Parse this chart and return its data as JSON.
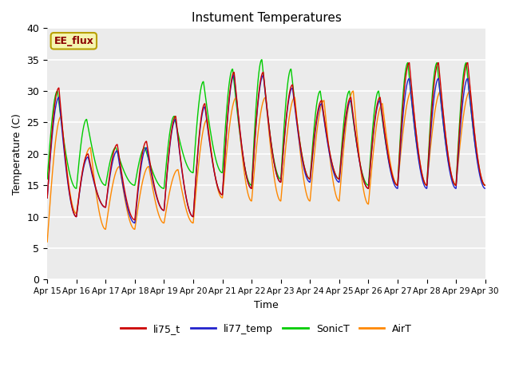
{
  "title": "Instument Temperatures",
  "xlabel": "Time",
  "ylabel": "Temperature (C)",
  "ylim": [
    0,
    40
  ],
  "xlim": [
    0,
    15
  ],
  "background_color": "#ebebeb",
  "annotation_text": "EE_flux",
  "annotation_color": "#8b0000",
  "annotation_bg": "#f5f5b0",
  "annotation_edge": "#b8a000",
  "legend_entries": [
    "li75_t",
    "li77_temp",
    "SonicT",
    "AirT"
  ],
  "legend_colors": [
    "#cc0000",
    "#2222cc",
    "#00cc00",
    "#ff8800"
  ],
  "xtick_labels": [
    "Apr 15",
    "Apr 16",
    "Apr 17",
    "Apr 18",
    "Apr 19",
    "Apr 20",
    "Apr 21",
    "Apr 22",
    "Apr 23",
    "Apr 24",
    "Apr 25",
    "Apr 26",
    "Apr 27",
    "Apr 28",
    "Apr 29",
    "Apr 30"
  ],
  "ytick_values": [
    0,
    5,
    10,
    15,
    20,
    25,
    30,
    35,
    40
  ],
  "li75_peaks": [
    30.5,
    20.0,
    21.5,
    22.0,
    26.0,
    28.0,
    33.0,
    33.0,
    31.0,
    28.5,
    29.0,
    29.0,
    34.5
  ],
  "li75_troughs": [
    13.0,
    10.0,
    11.5,
    9.5,
    11.0,
    10.0,
    13.5,
    14.5,
    15.5,
    16.0,
    16.0,
    14.5,
    15.0
  ],
  "li77_peaks": [
    29.0,
    19.5,
    20.5,
    21.0,
    25.5,
    27.5,
    32.5,
    32.5,
    30.5,
    28.0,
    28.5,
    28.5,
    32.0
  ],
  "li77_troughs": [
    13.0,
    10.0,
    11.5,
    9.0,
    11.0,
    10.0,
    13.5,
    14.5,
    15.5,
    15.5,
    15.5,
    14.5,
    14.5
  ],
  "sonic_peaks": [
    30.0,
    25.5,
    21.0,
    21.0,
    26.0,
    31.5,
    33.5,
    35.0,
    33.5,
    30.0,
    30.0,
    30.0,
    34.5
  ],
  "sonic_troughs": [
    16.0,
    14.5,
    15.0,
    15.0,
    14.5,
    17.0,
    17.0,
    15.0,
    16.0,
    16.0,
    16.0,
    15.0,
    15.0
  ],
  "airt_peaks": [
    26.0,
    21.0,
    18.0,
    18.0,
    17.5,
    25.5,
    29.0,
    29.0,
    29.0,
    28.5,
    30.0,
    28.0,
    30.0
  ],
  "airt_troughs": [
    6.0,
    10.5,
    8.0,
    8.0,
    9.0,
    9.0,
    13.0,
    12.5,
    12.5,
    12.5,
    12.5,
    12.0,
    15.0
  ]
}
